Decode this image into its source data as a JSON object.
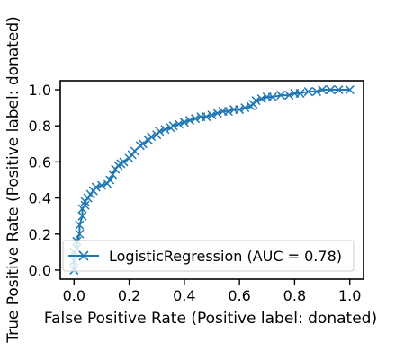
{
  "chart_data": {
    "type": "line",
    "xlabel": "False Positive Rate (Positive label: donated)",
    "ylabel": "True Positive Rate (Positive label: donated)",
    "xlim": [
      -0.05,
      1.05
    ],
    "ylim": [
      -0.05,
      1.05
    ],
    "xticks": [
      0.0,
      0.2,
      0.4,
      0.6,
      0.8,
      1.0
    ],
    "xtick_labels": [
      "0.0",
      "0.2",
      "0.4",
      "0.6",
      "0.8",
      "1.0"
    ],
    "yticks": [
      0.0,
      0.2,
      0.4,
      0.6,
      0.8,
      1.0
    ],
    "ytick_labels": [
      "0.0",
      "0.2",
      "0.4",
      "0.6",
      "0.8",
      "1.0"
    ],
    "grid": false,
    "legend_position": "lower-right",
    "series": [
      {
        "name": "LogisticRegression (AUC = 0.78)",
        "color": "#1f77b4",
        "marker": "x",
        "x": [
          0.0,
          0.0,
          0.0,
          0.01,
          0.01,
          0.02,
          0.02,
          0.03,
          0.03,
          0.04,
          0.04,
          0.05,
          0.06,
          0.07,
          0.08,
          0.1,
          0.12,
          0.13,
          0.14,
          0.15,
          0.16,
          0.17,
          0.18,
          0.2,
          0.21,
          0.22,
          0.24,
          0.25,
          0.27,
          0.28,
          0.3,
          0.31,
          0.33,
          0.35,
          0.36,
          0.38,
          0.4,
          0.42,
          0.44,
          0.46,
          0.48,
          0.5,
          0.52,
          0.54,
          0.56,
          0.58,
          0.6,
          0.62,
          0.64,
          0.65,
          0.66,
          0.68,
          0.7,
          0.72,
          0.75,
          0.78,
          0.8,
          0.82,
          0.85,
          0.88,
          0.9,
          0.93,
          0.96,
          1.0
        ],
        "y": [
          0.0,
          0.05,
          0.1,
          0.12,
          0.16,
          0.2,
          0.25,
          0.3,
          0.34,
          0.36,
          0.38,
          0.4,
          0.42,
          0.44,
          0.46,
          0.47,
          0.48,
          0.5,
          0.53,
          0.56,
          0.58,
          0.59,
          0.6,
          0.62,
          0.64,
          0.66,
          0.69,
          0.7,
          0.72,
          0.74,
          0.75,
          0.77,
          0.78,
          0.79,
          0.8,
          0.81,
          0.82,
          0.83,
          0.84,
          0.85,
          0.85,
          0.86,
          0.87,
          0.88,
          0.88,
          0.89,
          0.89,
          0.9,
          0.91,
          0.92,
          0.94,
          0.95,
          0.96,
          0.96,
          0.97,
          0.97,
          0.98,
          0.98,
          0.99,
          0.99,
          1.0,
          1.0,
          1.0,
          1.0
        ]
      }
    ]
  }
}
